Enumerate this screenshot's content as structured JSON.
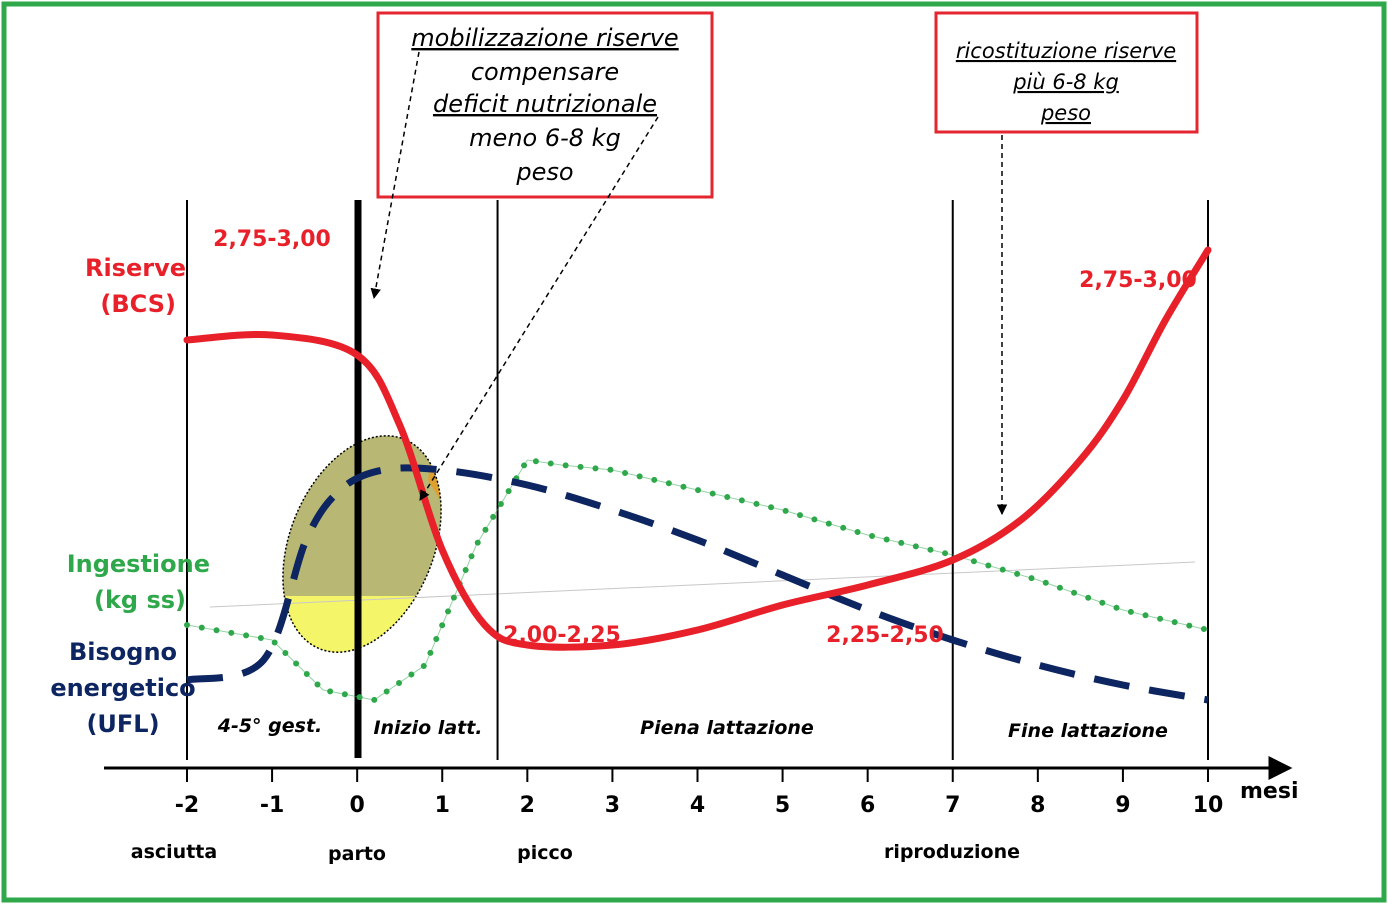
{
  "colors": {
    "frame": "#2ea84a",
    "reserves": "#e8202a",
    "intake": "#2ea84a",
    "energy_need": "#0d2560",
    "ellipse_fill": "#b8b874",
    "ellipse_lower_fill": "#f5f56a",
    "box_border": "#e3262f",
    "text": "#000000"
  },
  "labels": {
    "reserves_line1": "Riserve",
    "reserves_line2": "(BCS)",
    "intake_line1": "Ingestione",
    "intake_line2": "(kg ss)",
    "need_line1": "Bisogno",
    "need_line2": "energetico",
    "need_line3": "(UFL)",
    "bcs_start": "2,75-3,00",
    "bcs_min": "2,00-2,25",
    "bcs_repro": "2,25-2,50",
    "bcs_end": "2,75-3,00"
  },
  "phases": {
    "gestation": "4-5° gest.",
    "early": "Inizio latt.",
    "full": "Piena lattazione",
    "late": "Fine lattazione"
  },
  "events": {
    "dry": "asciutta",
    "calving": "parto",
    "peak": "picco",
    "reproduction": "riproduzione"
  },
  "box_left": {
    "line1": "mobilizzazione riserve",
    "line2": "compensare",
    "line3": "deficit nutrizionale",
    "line4": "meno 6-8 kg",
    "line5": "peso"
  },
  "box_right": {
    "line1": "ricostituzione riserve",
    "line2": "più 6-8 kg",
    "line3": "peso"
  },
  "chart_data": {
    "type": "line",
    "xlabel": "mesi",
    "xlim": [
      -2,
      10
    ],
    "x_ticks": [
      -2,
      -1,
      0,
      1,
      2,
      3,
      4,
      5,
      6,
      7,
      8,
      9,
      10
    ],
    "x_tick_labels": [
      "-2",
      "-1",
      "0",
      "1",
      "2",
      "3",
      "4",
      "5",
      "6",
      "7",
      "8",
      "9",
      "10"
    ],
    "phase_boundaries": [
      -2,
      0,
      1.65,
      7,
      10
    ],
    "series": [
      {
        "name": "Riserve (BCS)",
        "style": "solid",
        "points": [
          [
            -2,
            0.72
          ],
          [
            -1,
            0.73
          ],
          [
            0,
            0.69
          ],
          [
            0.5,
            0.55
          ],
          [
            1,
            0.3
          ],
          [
            1.5,
            0.15
          ],
          [
            2,
            0.11
          ],
          [
            3,
            0.11
          ],
          [
            4,
            0.14
          ],
          [
            5,
            0.19
          ],
          [
            6,
            0.23
          ],
          [
            7,
            0.28
          ],
          [
            7.8,
            0.36
          ],
          [
            8.5,
            0.48
          ],
          [
            9,
            0.6
          ],
          [
            9.5,
            0.76
          ],
          [
            10,
            0.9
          ]
        ]
      },
      {
        "name": "Ingestione (kg ss)",
        "style": "dotted",
        "points": [
          [
            -2,
            0.15
          ],
          [
            -1,
            0.12
          ],
          [
            -0.4,
            0.02
          ],
          [
            0.2,
            0.0
          ],
          [
            0.8,
            0.07
          ],
          [
            1.4,
            0.31
          ],
          [
            2.0,
            0.48
          ],
          [
            2.4,
            0.47
          ],
          [
            3,
            0.46
          ],
          [
            4,
            0.42
          ],
          [
            5,
            0.38
          ],
          [
            6,
            0.33
          ],
          [
            7,
            0.29
          ],
          [
            8,
            0.24
          ],
          [
            9,
            0.18
          ],
          [
            10,
            0.14
          ]
        ]
      },
      {
        "name": "Bisogno energetico (UFL)",
        "style": "dashed",
        "points": [
          [
            -2,
            0.04
          ],
          [
            -1.1,
            0.08
          ],
          [
            -0.6,
            0.32
          ],
          [
            -0.2,
            0.42
          ],
          [
            0.3,
            0.46
          ],
          [
            1,
            0.46
          ],
          [
            2,
            0.43
          ],
          [
            3,
            0.38
          ],
          [
            4,
            0.32
          ],
          [
            5,
            0.25
          ],
          [
            6,
            0.18
          ],
          [
            7,
            0.12
          ],
          [
            8,
            0.07
          ],
          [
            9,
            0.03
          ],
          [
            10,
            0.0
          ]
        ]
      }
    ]
  }
}
